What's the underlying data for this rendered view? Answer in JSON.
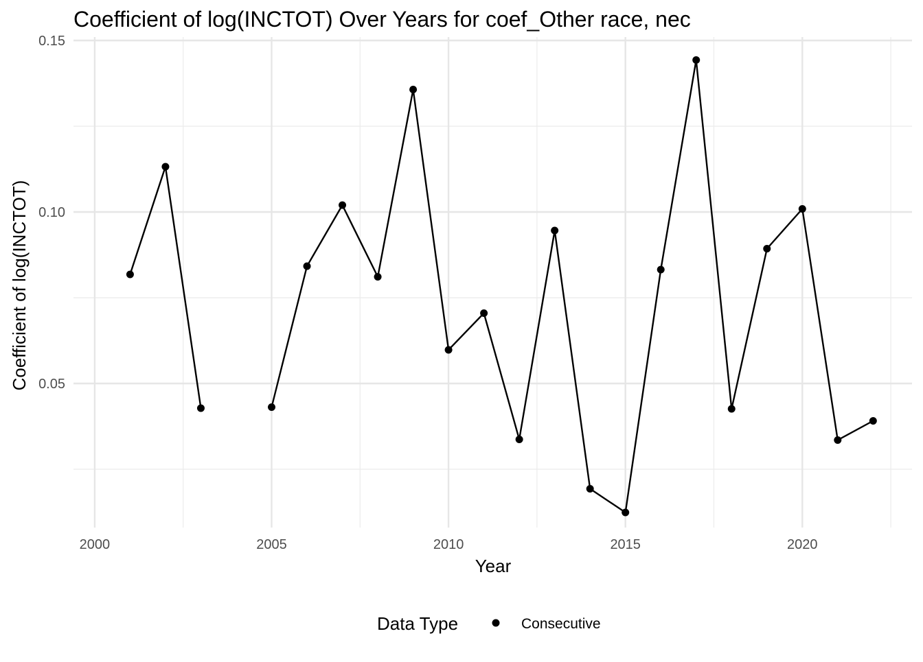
{
  "chart_data": {
    "type": "line",
    "title": "Coefficient of log(INCTOT) Over Years for coef_Other race, nec",
    "xlabel": "Year",
    "ylabel": "Coefficient of log(INCTOT)",
    "xlim": [
      1999.4,
      2023.1
    ],
    "ylim": [
      0.008,
      0.151
    ],
    "x_ticks": [
      2000,
      2005,
      2010,
      2015,
      2020
    ],
    "x_tick_labels": [
      "2000",
      "2005",
      "2010",
      "2015",
      "2020"
    ],
    "y_ticks": [
      0.05,
      0.1,
      0.15
    ],
    "y_tick_labels": [
      "0.05",
      "0.10",
      "0.15"
    ],
    "x_minor_ticks": [
      2002.5,
      2007.5,
      2012.5,
      2017.5,
      2022.5
    ],
    "y_minor_ticks": [
      0.025,
      0.075,
      0.125
    ],
    "grid": true,
    "legend": {
      "title": "Data Type",
      "placement": "bottom",
      "entries": [
        "Consecutive"
      ]
    },
    "series": [
      {
        "name": "Consecutive",
        "color": "#000000",
        "segments": [
          [
            [
              2001,
              0.0818
            ],
            [
              2002,
              0.1132
            ],
            [
              2003,
              0.0428
            ]
          ],
          [
            [
              2005,
              0.0431
            ],
            [
              2006,
              0.0842
            ],
            [
              2007,
              0.102
            ],
            [
              2008,
              0.0811
            ],
            [
              2009,
              0.1357
            ],
            [
              2010,
              0.0598
            ],
            [
              2011,
              0.0705
            ],
            [
              2012,
              0.0337
            ],
            [
              2013,
              0.0946
            ],
            [
              2014,
              0.0193
            ],
            [
              2015,
              0.0124
            ],
            [
              2016,
              0.0832
            ],
            [
              2017,
              0.1443
            ],
            [
              2018,
              0.0426
            ],
            [
              2019,
              0.0893
            ],
            [
              2020,
              0.1009
            ],
            [
              2021,
              0.0335
            ],
            [
              2022,
              0.0391
            ]
          ]
        ]
      }
    ]
  }
}
